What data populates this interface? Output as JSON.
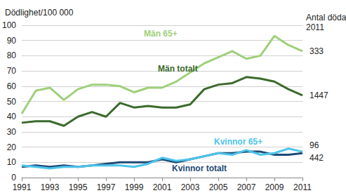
{
  "chart_data": {
    "type": "line",
    "y_label": "Dödlighet/100 000",
    "right_label": "Antal döda\n2011",
    "x": [
      1991,
      1992,
      1993,
      1994,
      1995,
      1996,
      1997,
      1998,
      1999,
      2000,
      2001,
      2002,
      2003,
      2004,
      2005,
      2006,
      2007,
      2008,
      2009,
      2010,
      2011
    ],
    "xlim": [
      1991,
      2011
    ],
    "xticks": [
      1991,
      1993,
      1995,
      1997,
      1999,
      2001,
      2003,
      2005,
      2007,
      2009,
      2011
    ],
    "ylim": [
      0,
      100
    ],
    "yticks": [
      0,
      10,
      20,
      30,
      40,
      50,
      60,
      70,
      80,
      90,
      100
    ],
    "grid": true,
    "series": [
      {
        "name": "Män 65+",
        "color": "#9fd07a",
        "deaths_2011": 333,
        "values": [
          42,
          57,
          59,
          51,
          58,
          61,
          61,
          60,
          56,
          59,
          59,
          63,
          69,
          75,
          79,
          83,
          78,
          80,
          93,
          87,
          83
        ]
      },
      {
        "name": "Män totalt",
        "color": "#3b6a2c",
        "deaths_2011": 1447,
        "values": [
          36,
          37,
          37,
          34,
          40,
          43,
          40,
          49,
          46,
          47,
          46,
          46,
          48,
          58,
          61,
          62,
          66,
          65,
          63,
          58,
          54
        ]
      },
      {
        "name": "Kvinnor 65+",
        "color": "#4cc4ea",
        "deaths_2011": 96,
        "values": [
          8,
          7,
          6,
          7,
          7,
          8,
          8,
          8,
          7,
          9,
          13,
          11,
          12,
          14,
          16,
          15,
          18,
          15,
          16,
          19,
          17
        ]
      },
      {
        "name": "Kvinnor totalt",
        "color": "#1d4a75",
        "deaths_2011": 442,
        "values": [
          7,
          8,
          7,
          8,
          7,
          8,
          9,
          10,
          10,
          10,
          12,
          10,
          12,
          14,
          16,
          16,
          17,
          17,
          15,
          15,
          16
        ]
      }
    ]
  }
}
